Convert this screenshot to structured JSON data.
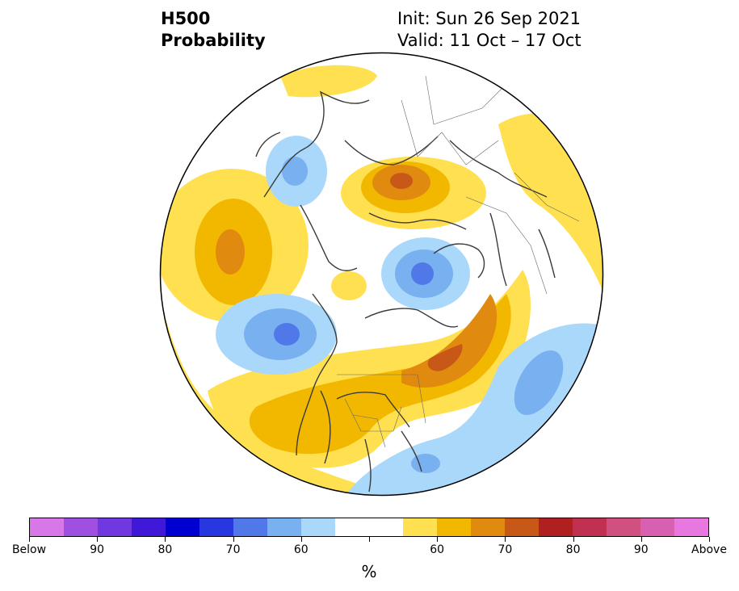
{
  "title": {
    "left_line1": "H500",
    "left_line2": "Probability",
    "init": "Init: Sun 26 Sep 2021",
    "valid": "Valid: 11 Oct – 17 Oct"
  },
  "colorbar": {
    "unit": "%",
    "colors": [
      "#d878e8",
      "#a050e0",
      "#7038e0",
      "#4018d8",
      "#0000d0",
      "#2838e0",
      "#5078e8",
      "#78b0f0",
      "#aad8fa",
      "#ffffff",
      "#ffffff",
      "#ffe050",
      "#f2b800",
      "#e08a10",
      "#c85818",
      "#b02020",
      "#c03050",
      "#d05080",
      "#d860b0",
      "#e878e0"
    ],
    "labels": [
      "Below",
      "90",
      "80",
      "70",
      "60",
      "60",
      "70",
      "80",
      "90",
      "Above"
    ]
  },
  "map": {
    "colors": {
      "below_light": "#aad8fa",
      "below_mid": "#78b0f0",
      "below_dark": "#5078e8",
      "above_light": "#ffe050",
      "above_mid": "#f2b800",
      "above_dark": "#e08a10",
      "above_darker": "#c85818"
    }
  }
}
